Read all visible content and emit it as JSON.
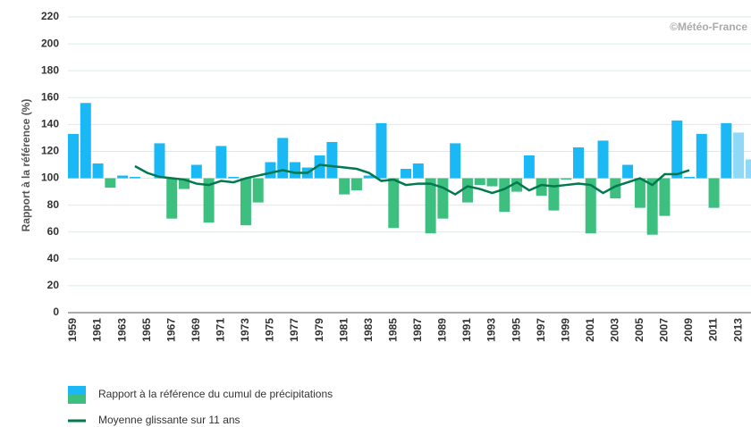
{
  "chart_data": {
    "type": "bar",
    "ylabel": "Rapport à la référence (%)",
    "annotation": "©Météo-France",
    "ylim": [
      0,
      220
    ],
    "yticks": [
      0,
      20,
      40,
      60,
      80,
      100,
      120,
      140,
      160,
      180,
      200,
      220
    ],
    "grid": true,
    "baseline": 100,
    "categories": [
      "1959",
      null,
      "1961",
      null,
      "1963",
      null,
      "1965",
      null,
      "1967",
      null,
      "1969",
      null,
      "1971",
      null,
      "1973",
      null,
      "1975",
      null,
      "1977",
      null,
      "1979",
      null,
      "1981",
      null,
      "1983",
      null,
      "1985",
      null,
      "1987",
      null,
      "1989",
      null,
      "1991",
      null,
      "1993",
      null,
      "1995",
      null,
      "1997",
      null,
      "1999",
      null,
      "2001",
      null,
      "2003",
      null,
      "2005",
      null,
      "2007",
      null,
      "2009",
      null,
      "2011",
      null,
      "2013",
      null
    ],
    "series": [
      {
        "name": "Rapport à la référence du cumul de précipitations",
        "type": "bar",
        "legend_colors": [
          "#1ab8f5",
          "#3dbf7f"
        ],
        "values": [
          133,
          156,
          111,
          93,
          102,
          101,
          100,
          126,
          70,
          92,
          110,
          67,
          124,
          101,
          65,
          82,
          112,
          130,
          112,
          108,
          117,
          127,
          88,
          91,
          102,
          141,
          63,
          107,
          111,
          59,
          70,
          126,
          82,
          95,
          94,
          75,
          90,
          117,
          87,
          76,
          99,
          123,
          59,
          128,
          85,
          110,
          78,
          58,
          72,
          143,
          101,
          133,
          78,
          141,
          134,
          114
        ],
        "colors": [
          "#1ab8f5",
          "#1ab8f5",
          "#1ab8f5",
          "#3dbf7f",
          "#1ab8f5",
          "#1ab8f5",
          "#1ab8f5",
          "#1ab8f5",
          "#3dbf7f",
          "#3dbf7f",
          "#1ab8f5",
          "#3dbf7f",
          "#1ab8f5",
          "#1ab8f5",
          "#3dbf7f",
          "#3dbf7f",
          "#1ab8f5",
          "#1ab8f5",
          "#1ab8f5",
          "#1ab8f5",
          "#1ab8f5",
          "#1ab8f5",
          "#3dbf7f",
          "#3dbf7f",
          "#1ab8f5",
          "#1ab8f5",
          "#3dbf7f",
          "#1ab8f5",
          "#1ab8f5",
          "#3dbf7f",
          "#3dbf7f",
          "#1ab8f5",
          "#3dbf7f",
          "#3dbf7f",
          "#3dbf7f",
          "#3dbf7f",
          "#3dbf7f",
          "#1ab8f5",
          "#3dbf7f",
          "#3dbf7f",
          "#3dbf7f",
          "#1ab8f5",
          "#3dbf7f",
          "#1ab8f5",
          "#3dbf7f",
          "#1ab8f5",
          "#3dbf7f",
          "#3dbf7f",
          "#3dbf7f",
          "#1ab8f5",
          "#1ab8f5",
          "#1ab8f5",
          "#3dbf7f",
          "#1ab8f5",
          "#8fd8f7",
          "#8fd8f7"
        ]
      },
      {
        "name": "Moyenne glissante sur 11 ans",
        "type": "line",
        "color": "#007a4d",
        "values": [
          null,
          null,
          null,
          null,
          null,
          109,
          104,
          101,
          100,
          99,
          96,
          95,
          98,
          97,
          100,
          102,
          104,
          106,
          104,
          104,
          110,
          109,
          108,
          107,
          104,
          98,
          99,
          95,
          96,
          96,
          93,
          88,
          94,
          92,
          89,
          92,
          97,
          91,
          95,
          94,
          95,
          96,
          95,
          89,
          94,
          97,
          100,
          95,
          103,
          103,
          106,
          null,
          null,
          null,
          null,
          null
        ]
      }
    ]
  }
}
